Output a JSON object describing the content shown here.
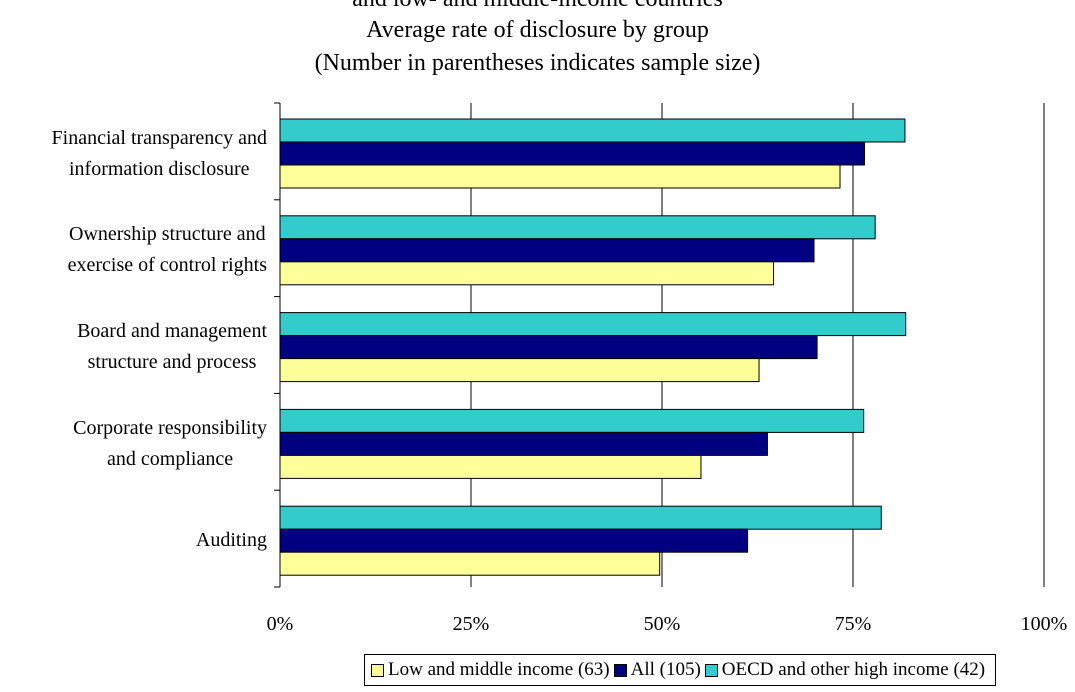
{
  "chart_data": {
    "type": "bar",
    "orientation": "horizontal",
    "title_partial": "and low- and middle-income countries",
    "title": "Average rate of disclosure by group",
    "subtitle": "(Number in parentheses indicates sample size)",
    "categories": [
      [
        "Financial transparency and",
        "information disclosure"
      ],
      [
        "Ownership structure and",
        "exercise of control rights"
      ],
      [
        "Board and management",
        "structure and process"
      ],
      [
        "Corporate responsibility",
        "and compliance"
      ],
      [
        "Auditing"
      ]
    ],
    "series": [
      {
        "name": "OECD and other high income (42)",
        "color": "#33CCCC",
        "values": [
          81.8,
          77.9,
          81.9,
          76.4,
          78.7
        ]
      },
      {
        "name": "All (105)",
        "color": "#000080",
        "values": [
          76.5,
          69.9,
          70.3,
          63.8,
          61.2
        ]
      },
      {
        "name": "Low and middle income (63)",
        "color": "#FFFF99",
        "values": [
          73.3,
          64.6,
          62.7,
          55.1,
          49.7
        ]
      }
    ],
    "legend_order": [
      2,
      1,
      0
    ],
    "xlim": [
      0,
      100
    ],
    "xticks": [
      "0%",
      "25%",
      "50%",
      "75%",
      "100%"
    ],
    "grid": true,
    "legend_position": "bottom"
  }
}
